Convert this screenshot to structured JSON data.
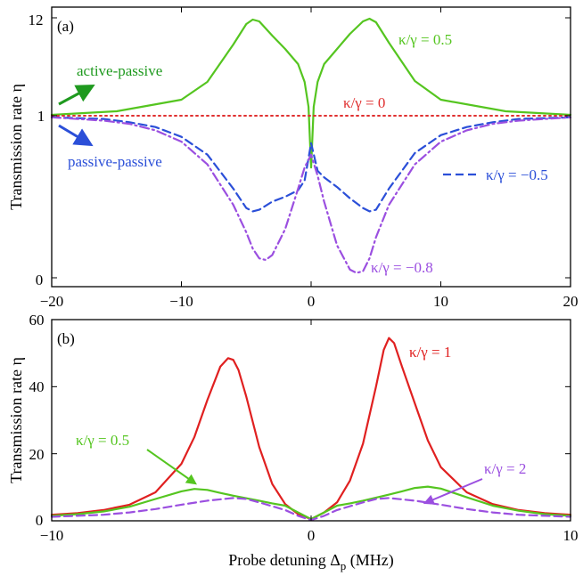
{
  "chart_data": [
    {
      "panel": "(a)",
      "type": "line",
      "title": "",
      "xlabel": "",
      "ylabel": "Transmission rate η",
      "xlim": [
        -20,
        20
      ],
      "ylim_display": "two linear segments joined at η = 1 (0 to 1 below the dotted line, 1 to 12 above it)",
      "x_ticks": [
        -20,
        -10,
        0,
        10,
        20
      ],
      "x_tick_labels": [
        "−20",
        "−10",
        "0",
        "10",
        "20"
      ],
      "y_tick_labels": [
        "0",
        "1",
        "12"
      ],
      "grid": false,
      "annotations": {
        "panel_label": "(a)",
        "active_passive": "active-passive",
        "passive_passive": "passive-passive",
        "arrow_active_color": "#1f9a1f",
        "arrow_passive_color": "#2b4fd8"
      },
      "series": [
        {
          "name": "κ/γ = 0.5",
          "label": "κ/γ = 0.5",
          "color": "#55c520",
          "style": "solid",
          "x": [
            -20,
            -15,
            -10,
            -8,
            -6,
            -5,
            -4.5,
            -4,
            -3,
            -2,
            -1,
            -0.5,
            -0.2,
            0,
            0.2,
            0.5,
            1,
            2,
            3,
            4,
            4.5,
            5,
            6,
            8,
            10,
            15,
            20
          ],
          "y": [
            1.1,
            1.5,
            2.8,
            4.8,
            9.0,
            11.3,
            11.8,
            11.6,
            10.0,
            8.5,
            6.8,
            4.8,
            2.0,
            0.68,
            2.0,
            4.8,
            6.8,
            8.5,
            10.2,
            11.6,
            11.9,
            11.5,
            9.2,
            4.9,
            2.8,
            1.5,
            1.1
          ]
        },
        {
          "name": "κ/γ = 0",
          "label": "κ/γ = 0",
          "color": "#e03030",
          "style": "dotted",
          "x": [
            -20,
            20
          ],
          "y": [
            1,
            1
          ]
        },
        {
          "name": "κ/γ = −0.5",
          "label": "κ/γ = −0.5",
          "color": "#2b4fd8",
          "style": "dashed",
          "x": [
            -20,
            -16,
            -14,
            -12,
            -10,
            -8,
            -6,
            -5,
            -4.5,
            -4,
            -3,
            -2,
            -1,
            -0.5,
            0,
            0.5,
            1,
            2,
            3,
            4,
            4.5,
            5,
            6,
            8,
            10,
            12,
            14,
            16,
            20
          ],
          "y": [
            0.99,
            0.98,
            0.96,
            0.93,
            0.87,
            0.76,
            0.55,
            0.43,
            0.41,
            0.42,
            0.47,
            0.5,
            0.54,
            0.6,
            0.83,
            0.66,
            0.62,
            0.56,
            0.49,
            0.43,
            0.41,
            0.42,
            0.55,
            0.77,
            0.88,
            0.93,
            0.96,
            0.98,
            0.99
          ]
        },
        {
          "name": "κ/γ = −0.8",
          "label": "κ/γ = −0.8",
          "color": "#9b4fe0",
          "style": "dash-dot",
          "x": [
            -20,
            -16,
            -14,
            -12,
            -10,
            -8,
            -6,
            -5,
            -4.5,
            -4,
            -3.5,
            -3,
            -2,
            -1,
            -0.5,
            0,
            0.5,
            1,
            2,
            3,
            3.5,
            4,
            4.5,
            5,
            6,
            8,
            10,
            12,
            14,
            16,
            20
          ],
          "y": [
            0.99,
            0.97,
            0.95,
            0.91,
            0.84,
            0.7,
            0.45,
            0.28,
            0.18,
            0.12,
            0.11,
            0.14,
            0.3,
            0.55,
            0.68,
            0.76,
            0.63,
            0.47,
            0.2,
            0.05,
            0.03,
            0.04,
            0.12,
            0.25,
            0.45,
            0.7,
            0.84,
            0.91,
            0.95,
            0.97,
            0.99
          ]
        }
      ]
    },
    {
      "panel": "(b)",
      "type": "line",
      "title": "",
      "xlabel": "Probe detuning Δp (MHz)",
      "xlabel_main": "Probe detuning Δ",
      "xlabel_sub": "p",
      "xlabel_unit": " (MHz)",
      "ylabel": "Transmission rate η",
      "xlim": [
        -10,
        10
      ],
      "ylim": [
        0,
        60
      ],
      "x_ticks": [
        -10,
        0,
        10
      ],
      "x_tick_labels": [
        "−10",
        "0",
        "10"
      ],
      "y_ticks": [
        0,
        20,
        40,
        60
      ],
      "y_tick_labels": [
        "0",
        "20",
        "40",
        "60"
      ],
      "grid": false,
      "annotations": {
        "panel_label": "(b)"
      },
      "series": [
        {
          "name": "κ/γ = 1",
          "label": "κ/γ = 1",
          "color": "#e02020",
          "style": "solid",
          "x": [
            -10,
            -9,
            -8,
            -7,
            -6,
            -5,
            -4.5,
            -4,
            -3.5,
            -3.2,
            -3,
            -2.8,
            -2.5,
            -2,
            -1.5,
            -1,
            -0.5,
            0,
            0.5,
            1,
            1.5,
            2,
            2.5,
            2.8,
            3,
            3.2,
            3.5,
            4,
            4.5,
            5,
            6,
            7,
            8,
            9,
            10
          ],
          "y": [
            1.8,
            2.3,
            3.2,
            4.8,
            8.5,
            17,
            25,
            36,
            46,
            48.5,
            48,
            45,
            37,
            22,
            11,
            5,
            2,
            0.5,
            2.5,
            5.5,
            12,
            23,
            40,
            51,
            54.5,
            53,
            46,
            35,
            24,
            16,
            8.5,
            5,
            3.2,
            2.3,
            1.8
          ]
        },
        {
          "name": "κ/γ = 0.5",
          "label": "κ/γ = 0.5",
          "color": "#55c520",
          "style": "solid",
          "x": [
            -10,
            -9,
            -8,
            -7,
            -6,
            -5,
            -4.5,
            -4,
            -3.5,
            -3,
            -2,
            -1.5,
            -1,
            -0.5,
            0,
            0.5,
            1,
            1.5,
            2,
            3,
            3.5,
            4,
            4.5,
            5,
            6,
            7,
            8,
            9,
            10
          ],
          "y": [
            1.5,
            2.0,
            2.8,
            4.2,
            6.5,
            8.8,
            9.5,
            9.2,
            8.3,
            7.5,
            6.0,
            5.2,
            4.5,
            2.5,
            0.5,
            2.5,
            4.5,
            5.2,
            6.0,
            7.8,
            8.8,
            9.8,
            10.2,
            9.6,
            7.0,
            4.5,
            3.0,
            2.0,
            1.5
          ]
        },
        {
          "name": "κ/γ = 2",
          "label": "κ/γ = 2",
          "color": "#9b4fe0",
          "style": "dashed",
          "x": [
            -10,
            -8,
            -7,
            -6,
            -5,
            -4,
            -3,
            -2.5,
            -2,
            -1,
            -0.5,
            0,
            0.5,
            1,
            2,
            2.5,
            3,
            4,
            5,
            6,
            7,
            8,
            10
          ],
          "y": [
            1.2,
            1.8,
            2.5,
            3.5,
            4.8,
            6.0,
            6.8,
            6.5,
            5.5,
            3.2,
            1.5,
            0.2,
            1.5,
            3.2,
            5.5,
            6.5,
            6.8,
            6.0,
            4.8,
            3.5,
            2.5,
            1.8,
            1.2
          ]
        }
      ]
    }
  ]
}
